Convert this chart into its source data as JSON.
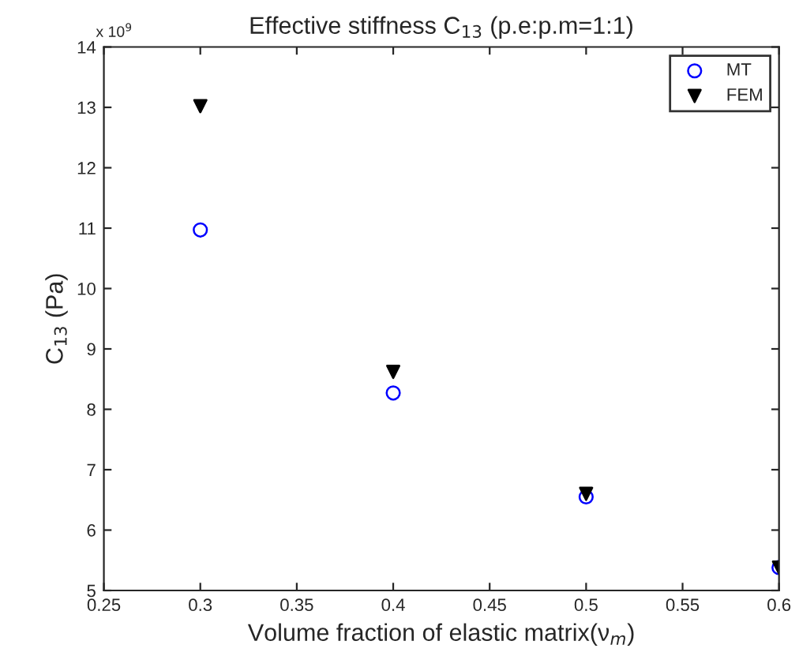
{
  "chart_data": {
    "type": "scatter",
    "title": "Effective stiffness C$_{13}$ (p.e:p.m=1:1)",
    "xlabel": "Volume fraction of elastic matrix(ν$_{m}$)",
    "ylabel": "C$_{13}$ (Pa)",
    "annotations": [
      "x 10$^{9}$"
    ],
    "x": [
      0.3,
      0.4,
      0.5,
      0.6
    ],
    "series": [
      {
        "name": "MT",
        "color": "#0000ff",
        "marker": "circle",
        "values": [
          10.97,
          8.27,
          6.55,
          5.38
        ]
      },
      {
        "name": "FEM",
        "color": "#000000",
        "marker": "triangle",
        "values": [
          13.02,
          8.62,
          6.6,
          5.38
        ]
      }
    ],
    "xlim": [
      0.25,
      0.6
    ],
    "xticks": [
      0.25,
      0.3,
      0.35,
      0.4,
      0.45,
      0.5,
      0.55,
      0.6
    ],
    "ylim": [
      5,
      14
    ],
    "yticks": [
      5,
      6,
      7,
      8,
      9,
      10,
      11,
      12,
      13,
      14
    ],
    "grid": false,
    "legend": "top right"
  }
}
